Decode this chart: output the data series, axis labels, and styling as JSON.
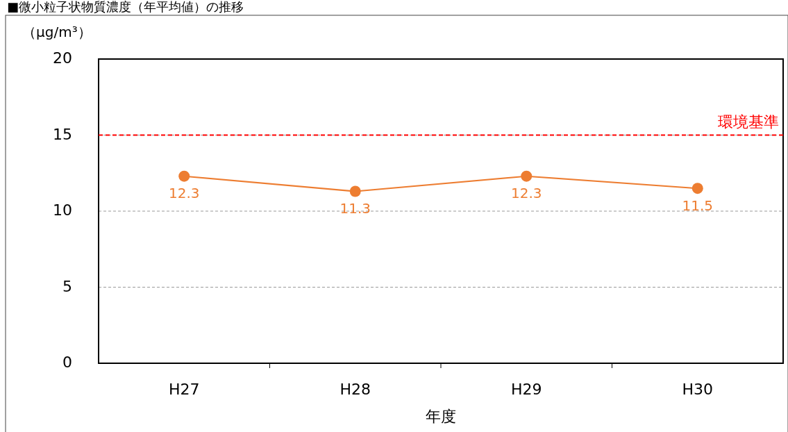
{
  "chart_data": {
    "type": "line",
    "title": "■微小粒子状物質濃度（年平均値）の推移",
    "xlabel": "年度",
    "ylabel": "（μg/m³）",
    "categories": [
      "H27",
      "H28",
      "H29",
      "H30"
    ],
    "series": [
      {
        "color": "#ed7d31",
        "values": [
          12.3,
          11.3,
          12.3,
          11.5
        ]
      }
    ],
    "ylim": [
      0,
      20
    ],
    "yticks": [
      0,
      5,
      10,
      15,
      20
    ],
    "grid": "y",
    "marker": "circle",
    "line_style": "solid",
    "data_labels": true,
    "ref_lines": [
      {
        "axis": "y",
        "value": 15,
        "label": "環境基準",
        "color": "#ff0000",
        "line_style": "dashed"
      }
    ]
  }
}
